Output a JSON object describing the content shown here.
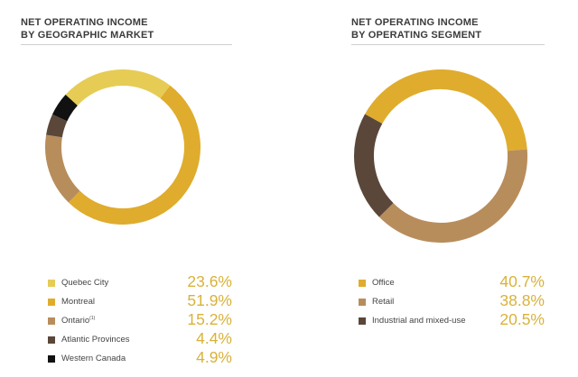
{
  "chart_data": [
    {
      "type": "pie",
      "title": "NET OPERATING INCOME BY GEOGRAPHIC MARKET",
      "title_lines": [
        "NET OPERATING INCOME",
        "BY GEOGRAPHIC MARKET"
      ],
      "donut": true,
      "slices": [
        {
          "label": "Quebec City",
          "value": 23.6,
          "value_text": "23.6%",
          "color": "#e6cc55"
        },
        {
          "label": "Montreal",
          "value": 51.9,
          "value_text": "51.9%",
          "color": "#dfac2d"
        },
        {
          "label": "Ontario",
          "label_note": "(1)",
          "value": 15.2,
          "value_text": "15.2%",
          "color": "#b88d5c"
        },
        {
          "label": "Atlantic Provinces",
          "value": 4.4,
          "value_text": "4.4%",
          "color": "#5a4739"
        },
        {
          "label": "Western Canada",
          "value": 4.9,
          "value_text": "4.9%",
          "color": "#111111"
        }
      ],
      "draw_order": [
        1,
        2,
        3,
        4,
        0
      ],
      "start_angle_deg": 37.5
    },
    {
      "type": "pie",
      "title": "NET OPERATING INCOME BY OPERATING SEGMENT",
      "title_lines": [
        "NET OPERATING INCOME",
        "BY OPERATING SEGMENT"
      ],
      "donut": true,
      "slices": [
        {
          "label": "Office",
          "value": 40.7,
          "value_text": "40.7%",
          "color": "#dfac2d"
        },
        {
          "label": "Retail",
          "value": 38.8,
          "value_text": "38.8%",
          "color": "#b88d5c"
        },
        {
          "label": "Industrial and mixed-use",
          "value": 20.5,
          "value_text": "20.5%",
          "color": "#5a4739"
        }
      ],
      "draw_order": [
        0,
        1,
        2
      ],
      "start_angle_deg": -61
    }
  ]
}
